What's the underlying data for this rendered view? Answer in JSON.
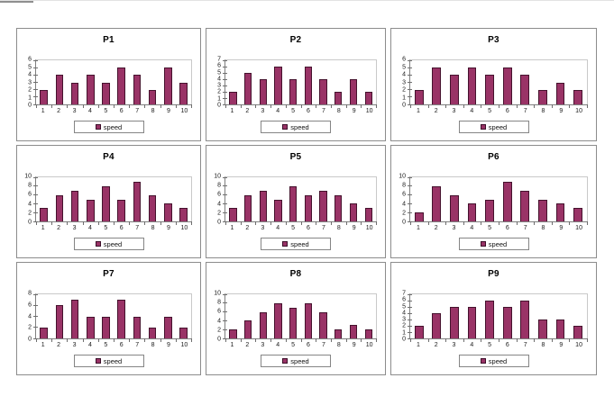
{
  "page": {
    "background": "#ffffff"
  },
  "colors": {
    "bar_fill": "#993366",
    "bar_border": "#45122d",
    "plot_border_light": "#c9c9c9",
    "axis_line": "#7f7f7f",
    "panel_border": "#8c8c8c",
    "legend_border": "#858585",
    "text": "#1a1a1a"
  },
  "chart_data": [
    {
      "type": "bar",
      "title": "P1",
      "categories": [
        "1",
        "2",
        "3",
        "4",
        "5",
        "6",
        "7",
        "8",
        "9",
        "10"
      ],
      "values": [
        2,
        4,
        3,
        4,
        3,
        5,
        4,
        2,
        5,
        3
      ],
      "ylim": [
        0,
        6
      ],
      "yticks": [
        0,
        1,
        2,
        3,
        4,
        5,
        6
      ],
      "legend": [
        "speed"
      ],
      "legend_position": "bottom",
      "grid": false
    },
    {
      "type": "bar",
      "title": "P2",
      "categories": [
        "1",
        "2",
        "3",
        "4",
        "5",
        "6",
        "7",
        "8",
        "9",
        "10"
      ],
      "values": [
        2,
        5,
        4,
        6,
        4,
        6,
        4,
        2,
        4,
        2
      ],
      "ylim": [
        0,
        7
      ],
      "yticks": [
        0,
        1,
        2,
        3,
        4,
        5,
        6,
        7
      ],
      "legend": [
        "speed"
      ],
      "legend_position": "bottom",
      "grid": false
    },
    {
      "type": "bar",
      "title": "P3",
      "categories": [
        "1",
        "2",
        "3",
        "4",
        "5",
        "6",
        "7",
        "8",
        "9",
        "10"
      ],
      "values": [
        2,
        5,
        4,
        5,
        4,
        5,
        4,
        2,
        3,
        2
      ],
      "ylim": [
        0,
        6
      ],
      "yticks": [
        0,
        1,
        2,
        3,
        4,
        5,
        6
      ],
      "legend": [
        "speed"
      ],
      "legend_position": "bottom",
      "grid": false
    },
    {
      "type": "bar",
      "title": "P4",
      "categories": [
        "1",
        "2",
        "3",
        "4",
        "5",
        "6",
        "7",
        "8",
        "9",
        "10"
      ],
      "values": [
        3,
        6,
        7,
        5,
        8,
        5,
        9,
        6,
        4,
        3
      ],
      "ylim": [
        0,
        10
      ],
      "yticks": [
        0,
        2,
        4,
        6,
        8,
        10
      ],
      "legend": [
        "speed"
      ],
      "legend_position": "bottom",
      "grid": false
    },
    {
      "type": "bar",
      "title": "P5",
      "categories": [
        "1",
        "2",
        "3",
        "4",
        "5",
        "6",
        "7",
        "8",
        "9",
        "10"
      ],
      "values": [
        3,
        6,
        7,
        5,
        8,
        6,
        7,
        6,
        4,
        3
      ],
      "ylim": [
        0,
        10
      ],
      "yticks": [
        0,
        2,
        4,
        6,
        8,
        10
      ],
      "legend": [
        "speed"
      ],
      "legend_position": "bottom",
      "grid": false
    },
    {
      "type": "bar",
      "title": "P6",
      "categories": [
        "1",
        "2",
        "3",
        "4",
        "5",
        "6",
        "7",
        "8",
        "9",
        "10"
      ],
      "values": [
        2,
        8,
        6,
        4,
        5,
        9,
        7,
        5,
        4,
        3
      ],
      "ylim": [
        0,
        10
      ],
      "yticks": [
        0,
        2,
        4,
        6,
        8,
        10
      ],
      "legend": [
        "speed"
      ],
      "legend_position": "bottom",
      "grid": false
    },
    {
      "type": "bar",
      "title": "P7",
      "categories": [
        "1",
        "2",
        "3",
        "4",
        "5",
        "6",
        "7",
        "8",
        "9",
        "10"
      ],
      "values": [
        2,
        6,
        7,
        4,
        4,
        7,
        4,
        2,
        4,
        2
      ],
      "ylim": [
        0,
        8
      ],
      "yticks": [
        0,
        2,
        4,
        6,
        8
      ],
      "legend": [
        "speed"
      ],
      "legend_position": "bottom",
      "grid": false
    },
    {
      "type": "bar",
      "title": "P8",
      "categories": [
        "1",
        "2",
        "3",
        "4",
        "5",
        "6",
        "7",
        "8",
        "9",
        "10"
      ],
      "values": [
        2,
        4,
        6,
        8,
        7,
        8,
        6,
        2,
        3,
        2
      ],
      "ylim": [
        0,
        10
      ],
      "yticks": [
        0,
        2,
        4,
        6,
        8,
        10
      ],
      "legend": [
        "speed"
      ],
      "legend_position": "bottom",
      "grid": false
    },
    {
      "type": "bar",
      "title": "P9",
      "categories": [
        "1",
        "2",
        "3",
        "4",
        "5",
        "6",
        "7",
        "8",
        "9",
        "10"
      ],
      "values": [
        2,
        4,
        5,
        5,
        6,
        5,
        6,
        3,
        3,
        2
      ],
      "ylim": [
        0,
        7
      ],
      "yticks": [
        0,
        1,
        2,
        3,
        4,
        5,
        6,
        7
      ],
      "legend": [
        "speed"
      ],
      "legend_position": "bottom",
      "grid": false
    }
  ]
}
